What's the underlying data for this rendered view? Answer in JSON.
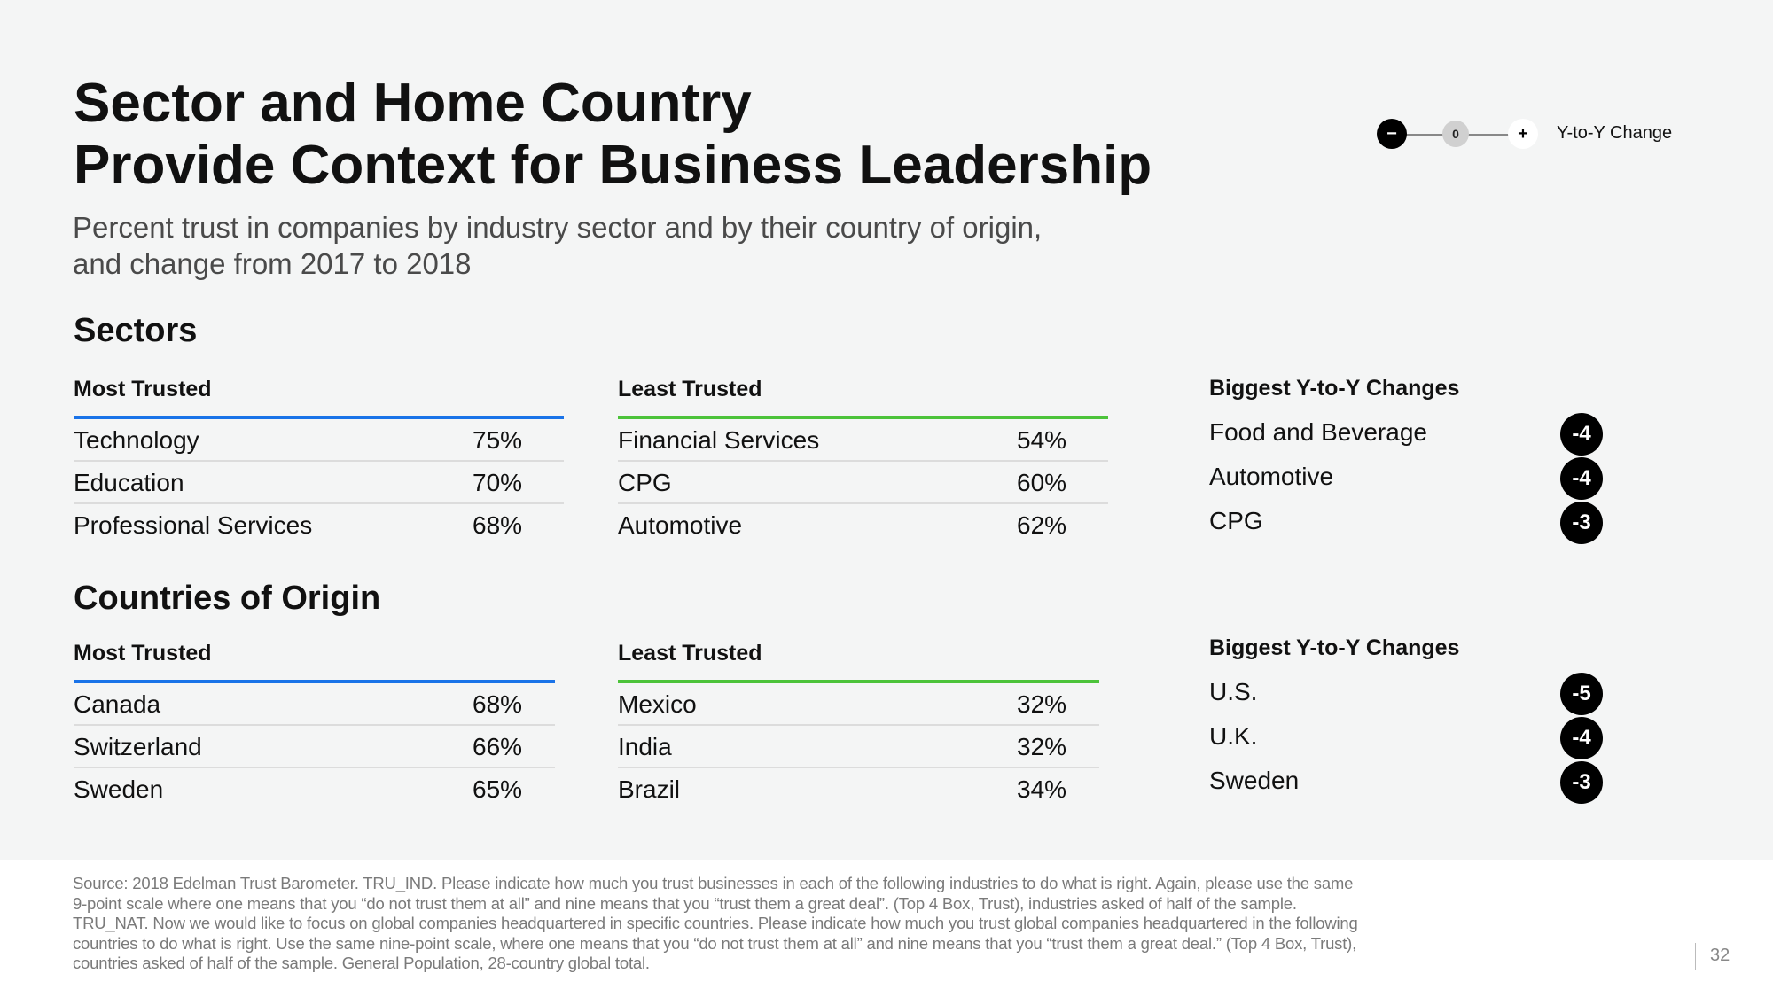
{
  "title": [
    "Sector and Home Country",
    "Provide Context for Business Leadership"
  ],
  "subtitle": [
    "Percent trust in companies by industry sector and by their country of origin,",
    "and change from 2017 to 2018"
  ],
  "legend": {
    "neg": "−",
    "zero": "0",
    "pos": "+",
    "label": "Y-to-Y Change"
  },
  "colors": {
    "most_trusted": "#1a73e8",
    "least_trusted": "#4cc33a",
    "badge": "#000000"
  },
  "sectors": {
    "title": "Sectors",
    "most_trusted": {
      "header": "Most Trusted",
      "rows": [
        {
          "name": "Technology",
          "value": "75%"
        },
        {
          "name": "Education",
          "value": "70%"
        },
        {
          "name": "Professional Services",
          "value": "68%"
        }
      ]
    },
    "least_trusted": {
      "header": "Least Trusted",
      "rows": [
        {
          "name": "Financial Services",
          "value": "54%"
        },
        {
          "name": "CPG",
          "value": "60%"
        },
        {
          "name": "Automotive",
          "value": "62%"
        }
      ]
    },
    "changes": {
      "header": "Biggest Y-to-Y Changes",
      "rows": [
        {
          "name": "Food and Beverage",
          "change": "-4"
        },
        {
          "name": "Automotive",
          "change": "-4"
        },
        {
          "name": "CPG",
          "change": "-3"
        }
      ]
    }
  },
  "countries": {
    "title": "Countries of Origin",
    "most_trusted": {
      "header": "Most Trusted",
      "rows": [
        {
          "name": "Canada",
          "value": "68%"
        },
        {
          "name": "Switzerland",
          "value": "66%"
        },
        {
          "name": "Sweden",
          "value": "65%"
        }
      ]
    },
    "least_trusted": {
      "header": "Least Trusted",
      "rows": [
        {
          "name": "Mexico",
          "value": "32%"
        },
        {
          "name": "India",
          "value": "32%"
        },
        {
          "name": "Brazil",
          "value": "34%"
        }
      ]
    },
    "changes": {
      "header": "Biggest Y-to-Y Changes",
      "rows": [
        {
          "name": "U.S.",
          "change": "-5"
        },
        {
          "name": "U.K.",
          "change": "-4"
        },
        {
          "name": "Sweden",
          "change": "-3"
        }
      ]
    }
  },
  "source": "Source: 2018 Edelman Trust Barometer. TRU_IND. Please indicate how much you trust businesses in each of the following industries to do what is right. Again, please use the same 9-point scale where one means that you “do not trust them at all” and nine means that you “trust them a great deal”. (Top 4 Box, Trust), industries asked of half of the sample. TRU_NAT. Now we would like to focus on global companies headquartered in specific countries. Please indicate how much you trust global companies headquartered in the following countries to do what is right. Use the same nine-point scale, where one means that you “do not trust them at all” and nine means that you “trust them a great deal.” (Top 4 Box, Trust), countries asked of half of the sample. General Population, 28-country global total.",
  "page_number": "32"
}
